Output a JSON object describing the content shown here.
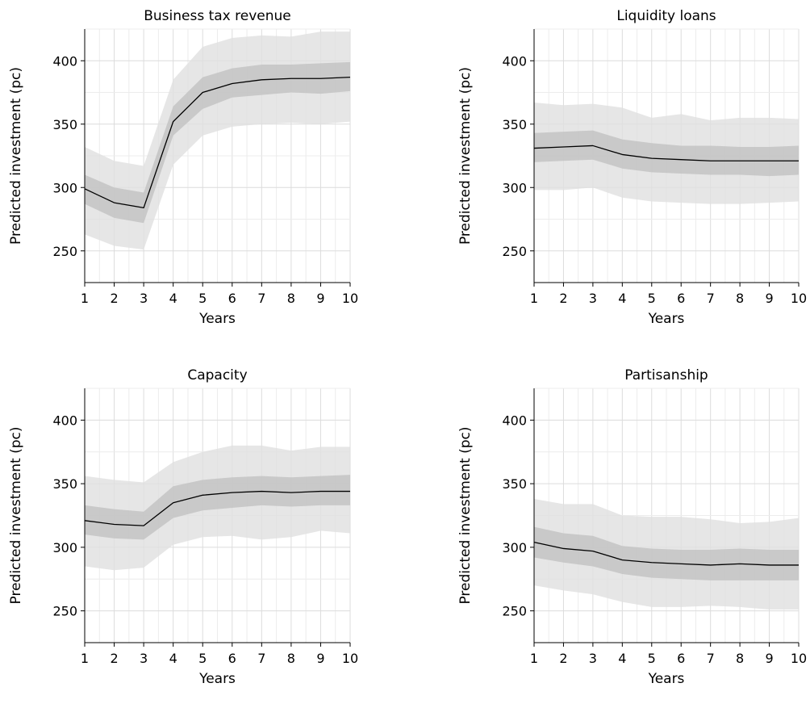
{
  "colors": {
    "outer_band": "#e0e0e0",
    "inner_band": "#c2c2c2",
    "line": "#000000",
    "grid_major": "#dcdcdc",
    "grid_minor": "#ececec",
    "axis": "#000000"
  },
  "chart_data": [
    {
      "type": "line",
      "title": "Business tax revenue",
      "xlabel": "Years",
      "ylabel": "Predicted investment (pc)",
      "x": [
        1,
        2,
        3,
        4,
        5,
        6,
        7,
        8,
        9,
        10
      ],
      "xlim": [
        1,
        10
      ],
      "ylim": [
        225,
        425
      ],
      "xticks": [
        1,
        2,
        3,
        4,
        5,
        6,
        7,
        8,
        9,
        10
      ],
      "yticks": [
        250,
        300,
        350,
        400
      ],
      "grid": true,
      "series": [
        {
          "values": [
            299,
            288,
            284,
            352,
            375,
            382,
            385,
            386,
            386,
            387
          ],
          "inner_low": [
            287,
            276,
            272,
            341,
            362,
            371,
            373,
            375,
            374,
            376
          ],
          "inner_high": [
            310,
            300,
            296,
            364,
            387,
            394,
            397,
            397,
            398,
            399
          ],
          "outer_low": [
            263,
            254,
            251,
            318,
            341,
            348,
            350,
            351,
            350,
            352
          ],
          "outer_high": [
            332,
            321,
            317,
            385,
            411,
            418,
            420,
            419,
            423,
            423
          ]
        }
      ]
    },
    {
      "type": "line",
      "title": "Liquidity loans",
      "xlabel": "Years",
      "ylabel": "Predicted investment (pc)",
      "x": [
        1,
        2,
        3,
        4,
        5,
        6,
        7,
        8,
        9,
        10
      ],
      "xlim": [
        1,
        10
      ],
      "ylim": [
        225,
        425
      ],
      "xticks": [
        1,
        2,
        3,
        4,
        5,
        6,
        7,
        8,
        9,
        10
      ],
      "yticks": [
        250,
        300,
        350,
        400
      ],
      "grid": true,
      "series": [
        {
          "values": [
            331,
            332,
            333,
            326,
            323,
            322,
            321,
            321,
            321,
            321
          ],
          "inner_low": [
            320,
            321,
            322,
            315,
            312,
            311,
            310,
            310,
            309,
            310
          ],
          "inner_high": [
            343,
            344,
            345,
            338,
            335,
            333,
            333,
            332,
            332,
            333
          ],
          "outer_low": [
            298,
            298,
            300,
            292,
            289,
            288,
            287,
            287,
            288,
            289
          ],
          "outer_high": [
            367,
            365,
            366,
            363,
            355,
            358,
            353,
            355,
            355,
            354
          ]
        }
      ]
    },
    {
      "type": "line",
      "title": "Capacity",
      "xlabel": "Years",
      "ylabel": "Predicted investment (pc)",
      "x": [
        1,
        2,
        3,
        4,
        5,
        6,
        7,
        8,
        9,
        10
      ],
      "xlim": [
        1,
        10
      ],
      "ylim": [
        225,
        425
      ],
      "xticks": [
        1,
        2,
        3,
        4,
        5,
        6,
        7,
        8,
        9,
        10
      ],
      "yticks": [
        250,
        300,
        350,
        400
      ],
      "grid": true,
      "series": [
        {
          "values": [
            321,
            318,
            317,
            335,
            341,
            343,
            344,
            343,
            344,
            344
          ],
          "inner_low": [
            310,
            307,
            306,
            323,
            329,
            331,
            333,
            332,
            333,
            333
          ],
          "inner_high": [
            333,
            330,
            328,
            348,
            353,
            355,
            356,
            355,
            356,
            357
          ],
          "outer_low": [
            285,
            282,
            284,
            302,
            308,
            309,
            306,
            308,
            313,
            311
          ],
          "outer_high": [
            356,
            353,
            351,
            367,
            375,
            380,
            380,
            376,
            379,
            379
          ]
        }
      ]
    },
    {
      "type": "line",
      "title": "Partisanship",
      "xlabel": "Years",
      "ylabel": "Predicted investment (pc)",
      "x": [
        1,
        2,
        3,
        4,
        5,
        6,
        7,
        8,
        9,
        10
      ],
      "xlim": [
        1,
        10
      ],
      "ylim": [
        225,
        425
      ],
      "xticks": [
        1,
        2,
        3,
        4,
        5,
        6,
        7,
        8,
        9,
        10
      ],
      "yticks": [
        250,
        300,
        350,
        400
      ],
      "grid": true,
      "series": [
        {
          "values": [
            304,
            299,
            297,
            290,
            288,
            287,
            286,
            287,
            286,
            286
          ],
          "inner_low": [
            292,
            288,
            285,
            279,
            276,
            275,
            274,
            274,
            274,
            274
          ],
          "inner_high": [
            316,
            311,
            309,
            301,
            299,
            298,
            298,
            299,
            298,
            298
          ],
          "outer_low": [
            270,
            266,
            263,
            257,
            253,
            253,
            254,
            253,
            251,
            251
          ],
          "outer_high": [
            338,
            334,
            334,
            325,
            324,
            324,
            322,
            319,
            320,
            323
          ]
        }
      ]
    }
  ]
}
